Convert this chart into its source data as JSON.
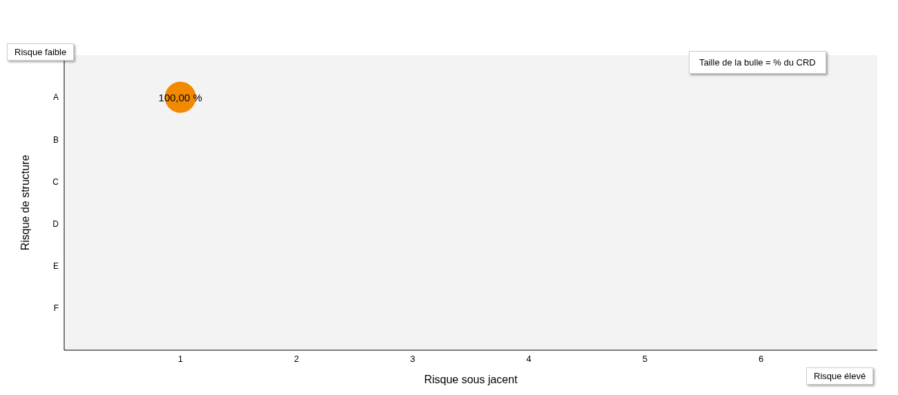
{
  "chart_data": {
    "type": "bubble",
    "orientation": "horizontal",
    "xlabel": "Risque sous jacent",
    "ylabel": "Risque de structure",
    "annotations": [
      "Risque faible",
      "Risque élevé",
      "Taille de la bulle = % du CRD"
    ],
    "categories": [
      "A",
      "B",
      "C",
      "D",
      "E",
      "F"
    ],
    "series": [
      {
        "color": "#f28a00",
        "values": [
          1,
          null,
          null,
          null,
          null,
          null
        ],
        "sizes": [
          1,
          null,
          null,
          null,
          null,
          null
        ],
        "value_labels": [
          "100,00 %",
          null,
          null,
          null,
          null,
          null
        ]
      }
    ],
    "xlim": [
      0,
      7
    ],
    "xticks": [
      1,
      2,
      3,
      4,
      5,
      6
    ],
    "grid": false,
    "legend": false
  }
}
